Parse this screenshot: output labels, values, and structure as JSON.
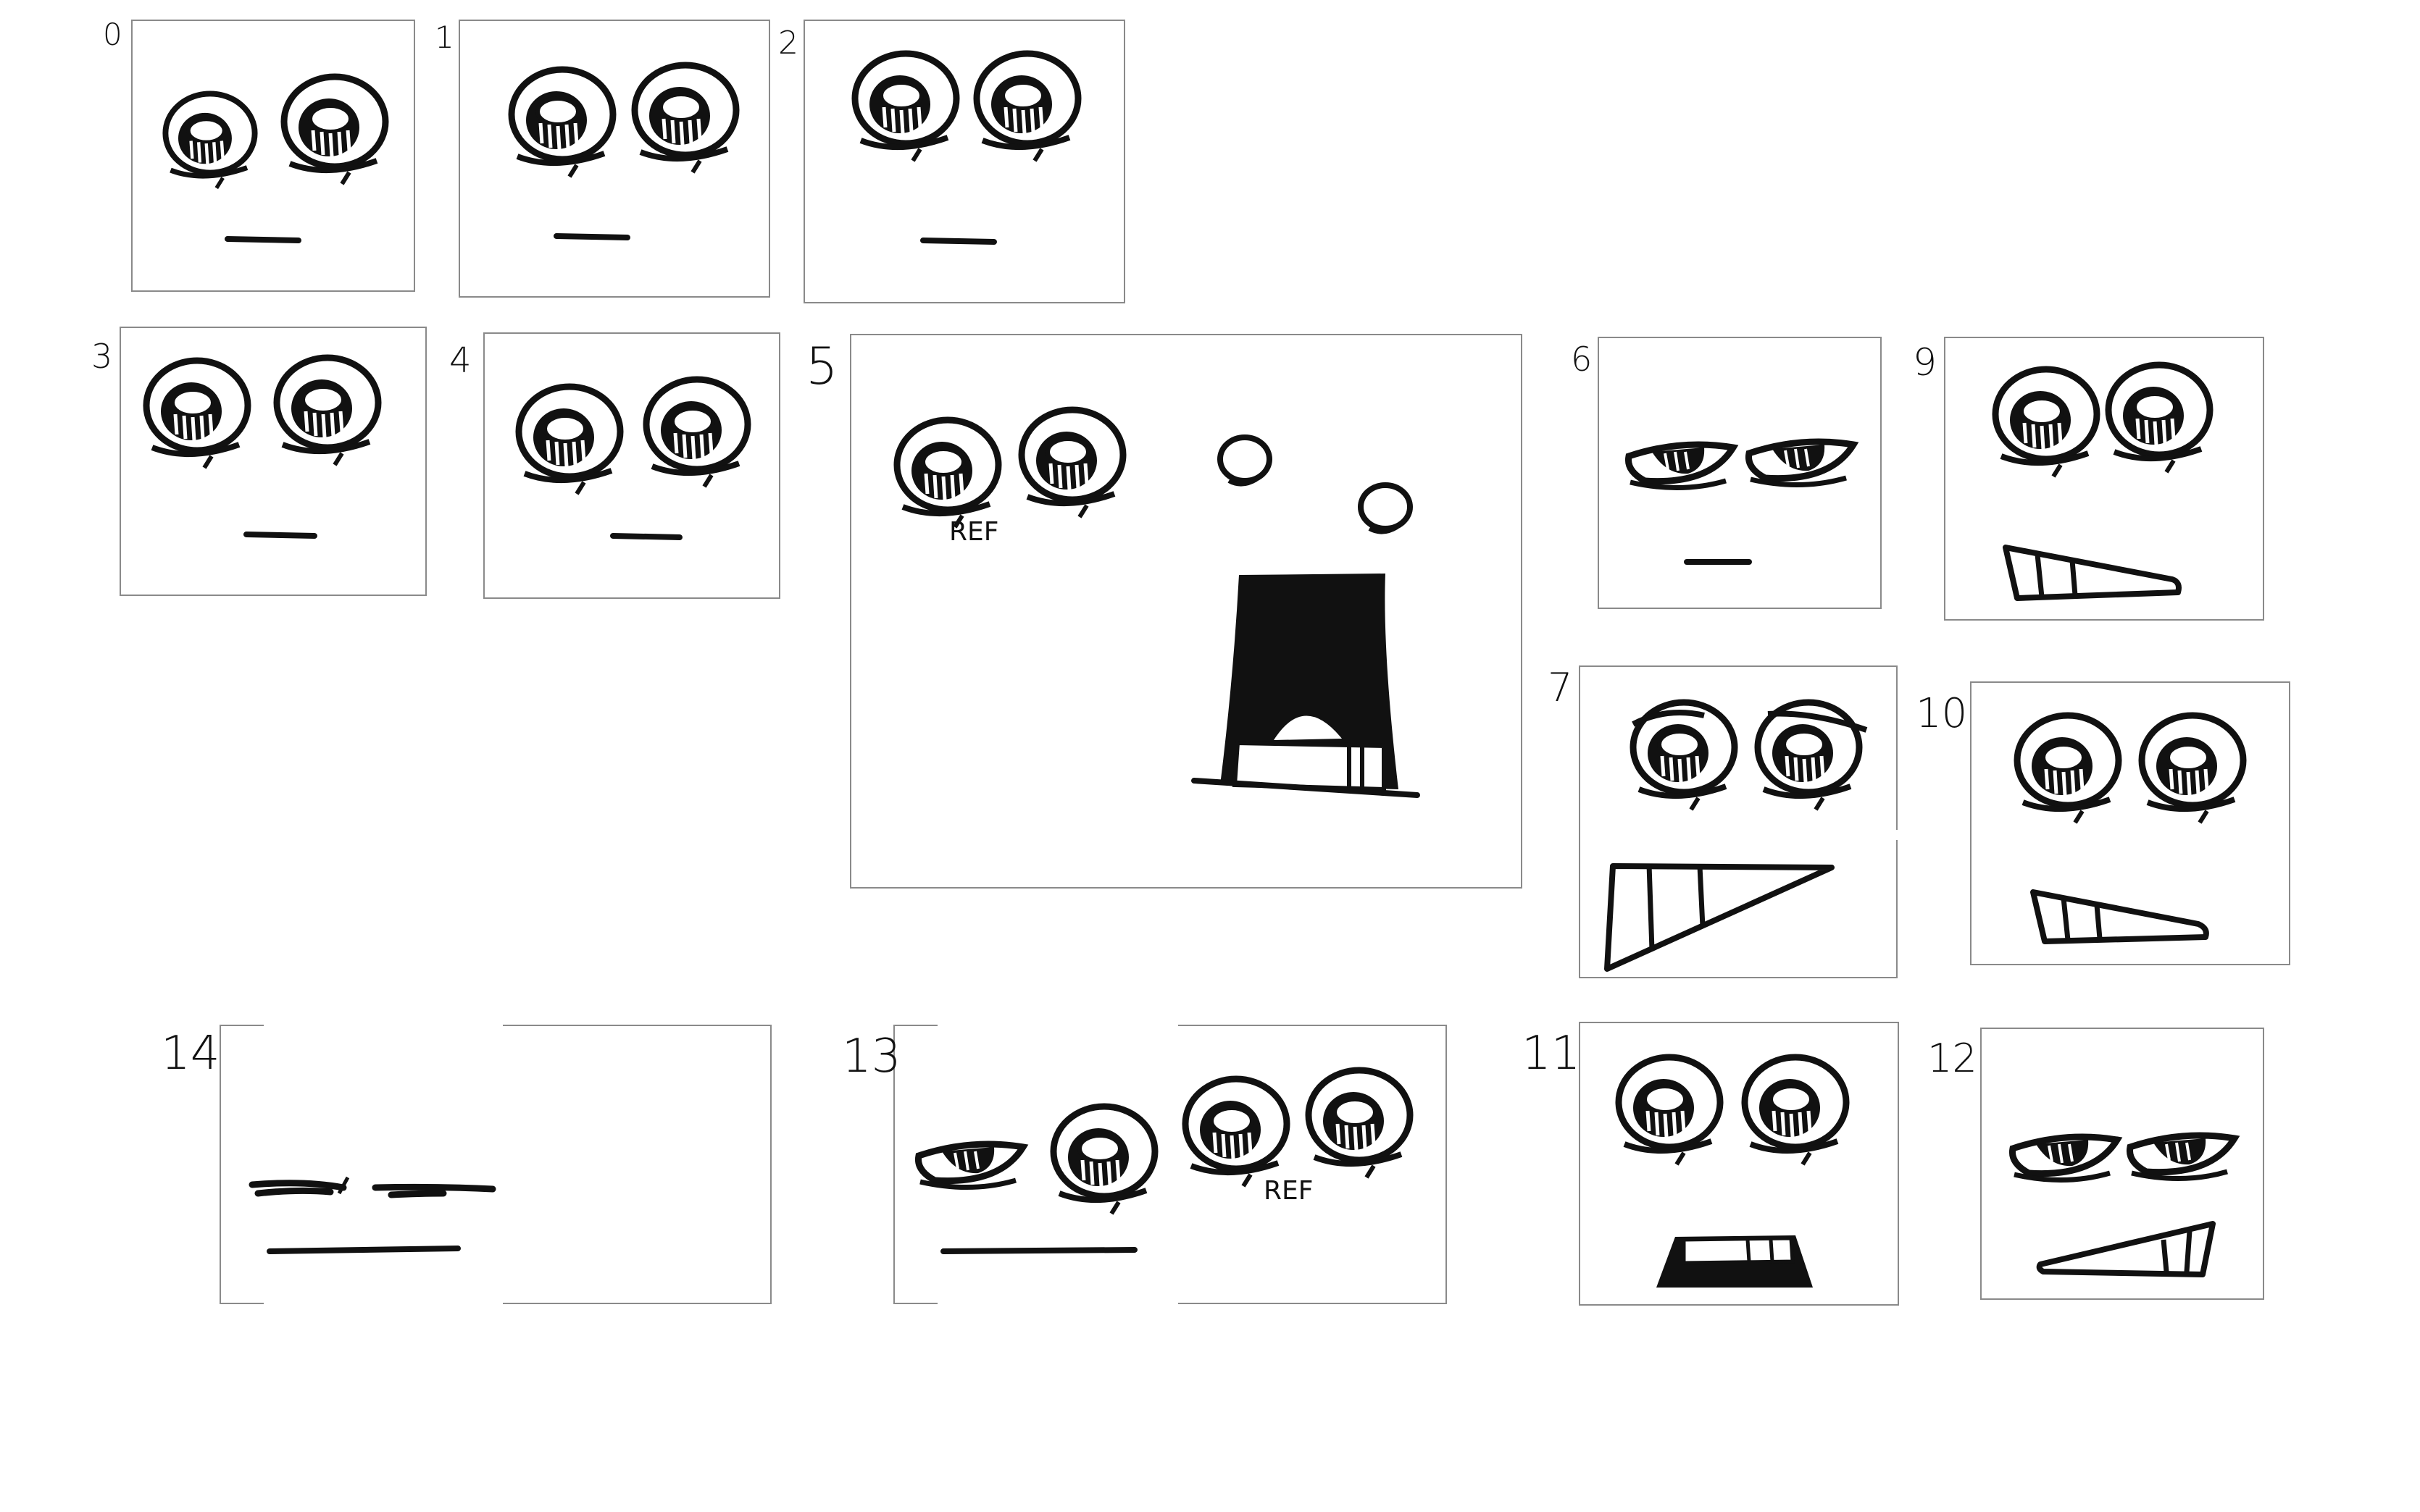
{
  "sheet": {
    "panels": [
      {
        "number": "0"
      },
      {
        "number": "1"
      },
      {
        "number": "2"
      },
      {
        "number": "3"
      },
      {
        "number": "4"
      },
      {
        "number": "5",
        "note": "REF"
      },
      {
        "number": "6"
      },
      {
        "number": "7"
      },
      {
        "number": "9"
      },
      {
        "number": "10"
      },
      {
        "number": "11"
      },
      {
        "number": "12"
      },
      {
        "number": "13",
        "note": "REF"
      },
      {
        "number": "14"
      }
    ]
  },
  "colors": {
    "ink": "#111111",
    "frame": "#8a8a8a",
    "paper": "#ffffff"
  }
}
